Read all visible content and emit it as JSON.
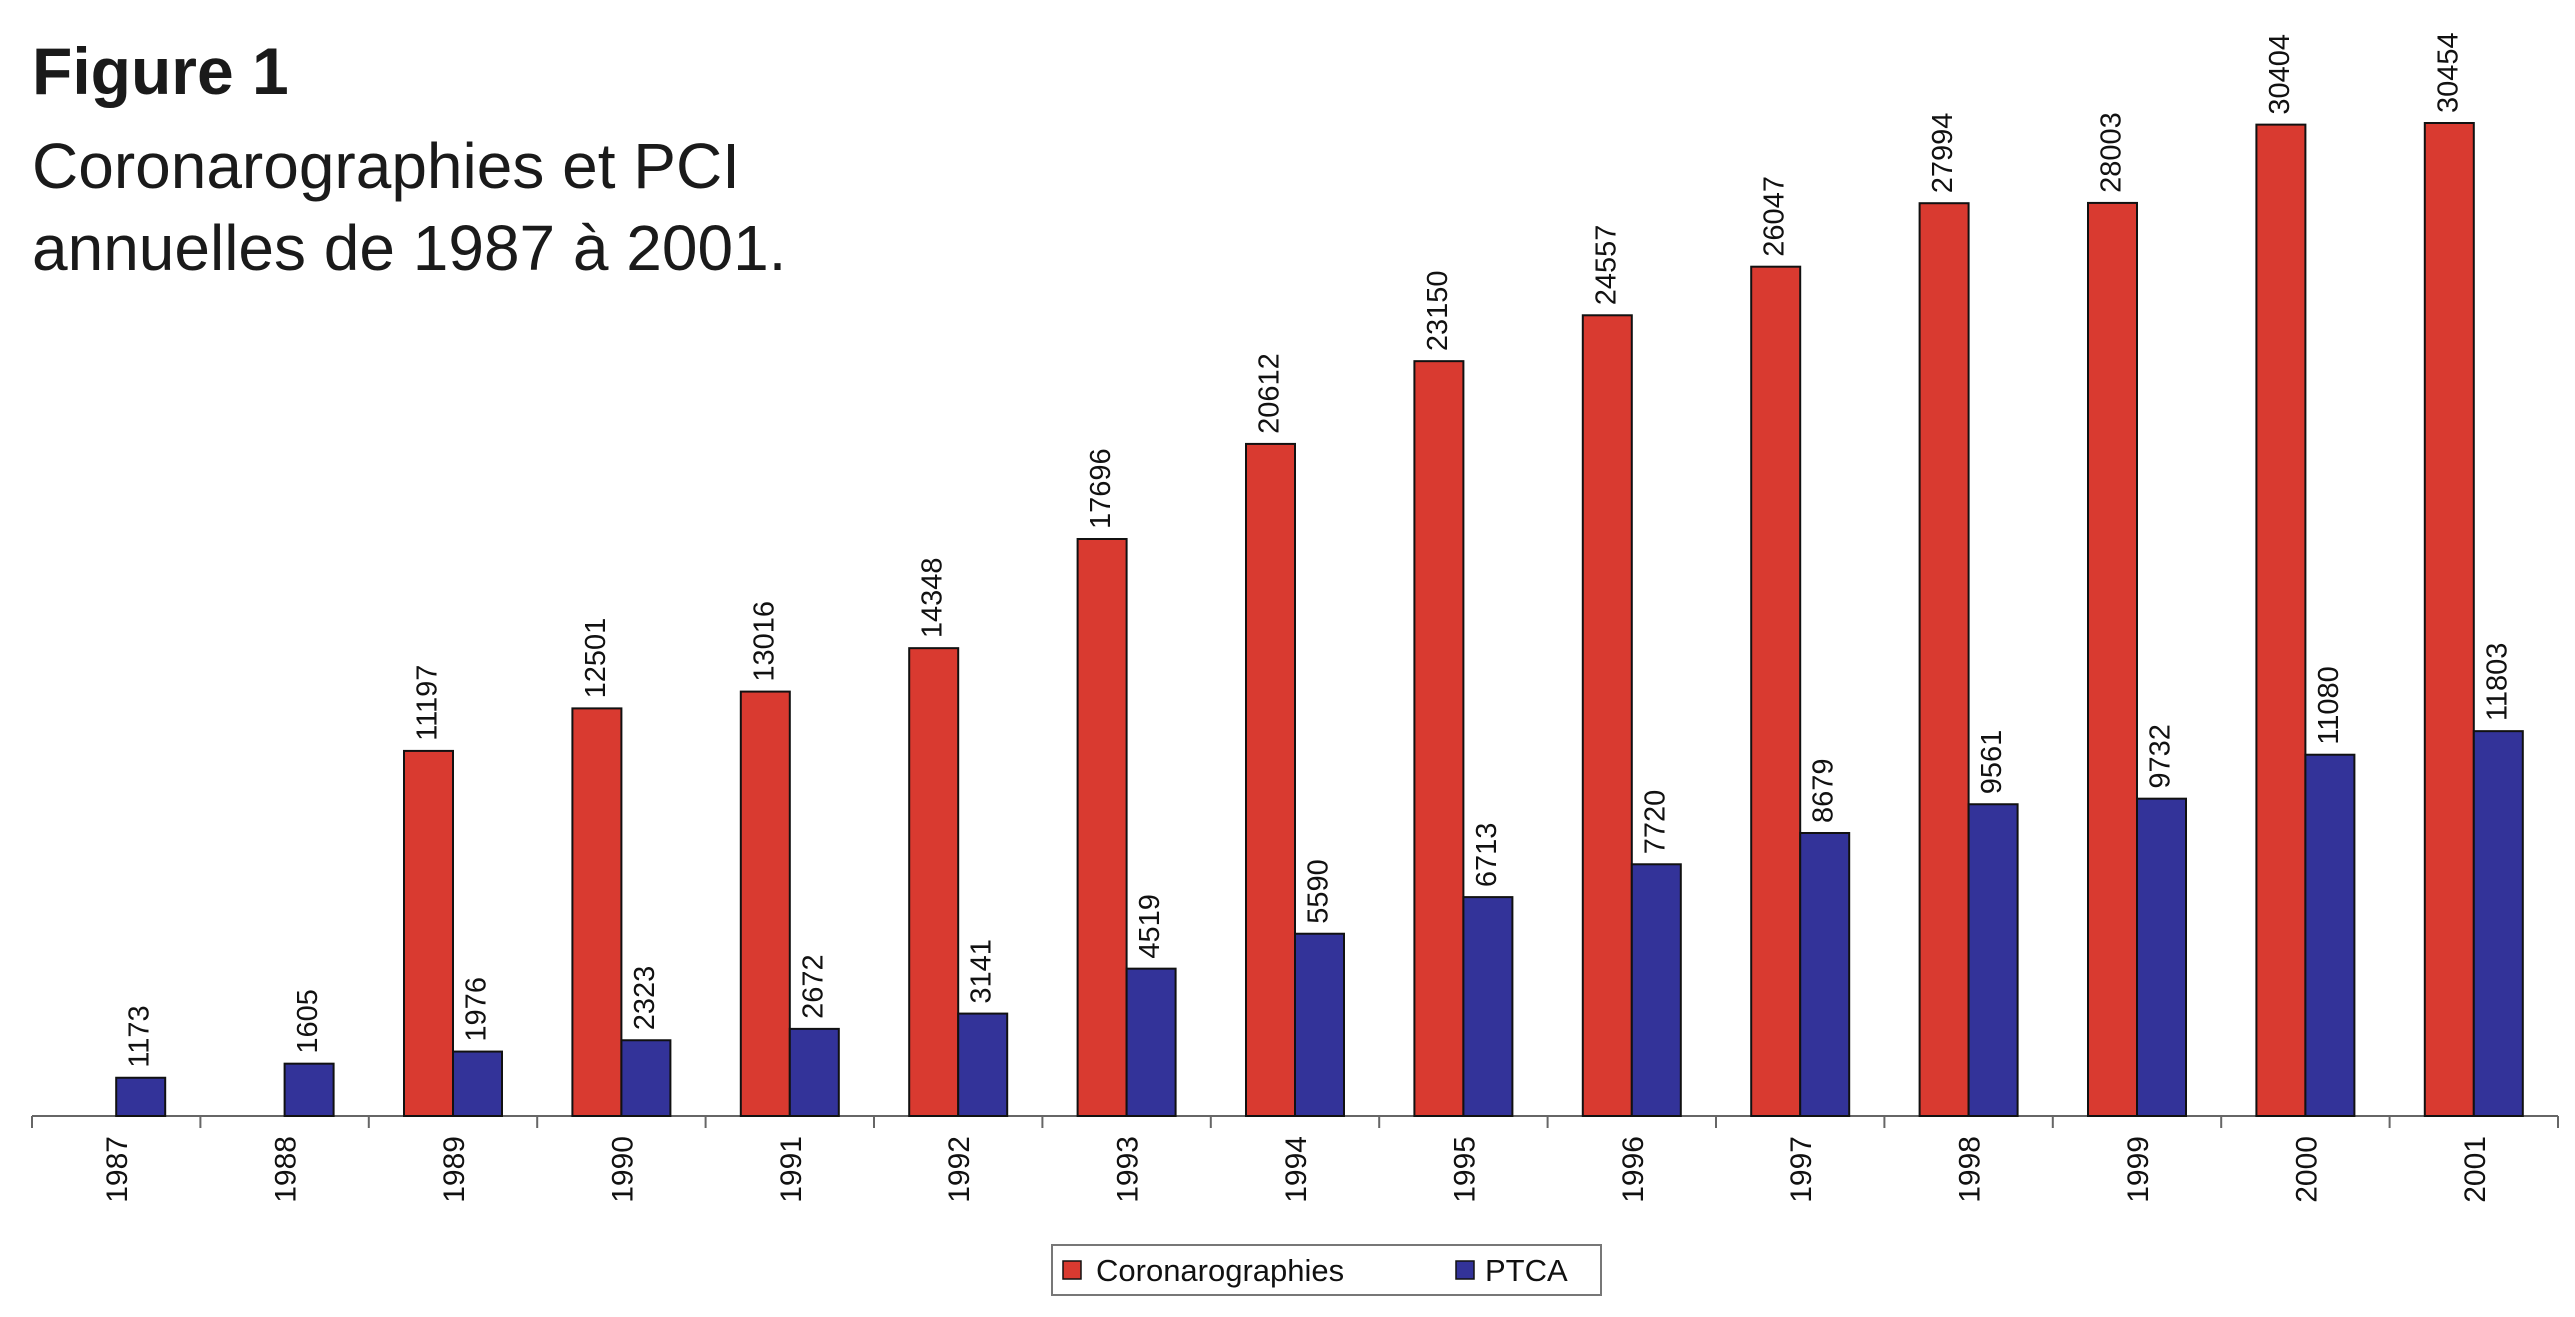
{
  "figure": {
    "label": "Figure 1",
    "caption": "Coronarographies et PCI annuelles de 1987 à 2001."
  },
  "chart_data": {
    "type": "bar",
    "title": "Coronarographies et PCI annuelles de 1987 à 2001.",
    "xlabel": "",
    "ylabel": "",
    "ylim": [
      0,
      34000
    ],
    "grid": false,
    "legend_position": "bottom-center",
    "categories": [
      "1987",
      "1988",
      "1989",
      "1990",
      "1991",
      "1992",
      "1993",
      "1994",
      "1995",
      "1996",
      "1997",
      "1998",
      "1999",
      "2000",
      "2001"
    ],
    "series": [
      {
        "name": "Coronarographies",
        "color": "#d93a30",
        "values": [
          null,
          null,
          11197,
          12501,
          13016,
          14348,
          17696,
          20612,
          23150,
          24557,
          26047,
          27994,
          28003,
          30404,
          30454
        ]
      },
      {
        "name": "PTCA",
        "color": "#333399",
        "values": [
          1173,
          1605,
          1976,
          2323,
          2672,
          3141,
          4519,
          5590,
          6713,
          7720,
          8679,
          9561,
          9732,
          11080,
          11803
        ]
      }
    ]
  }
}
